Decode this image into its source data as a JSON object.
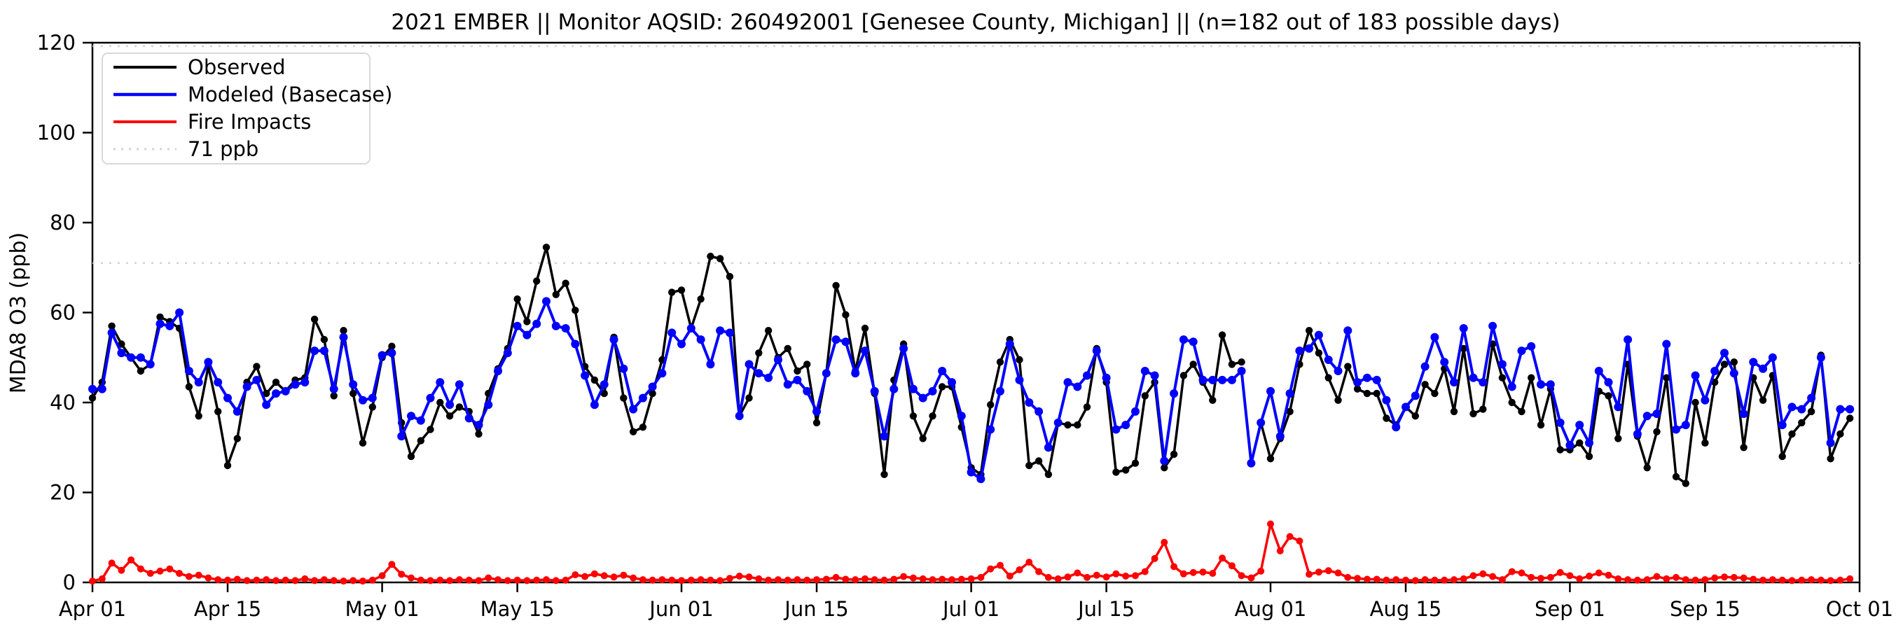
{
  "title": "2021 EMBER || Monitor AQSID: 260492001 [Genesee County, Michigan] || (n=182 out of 183 possible days)",
  "y_axis": {
    "label": "MDA8 O3 (ppb)",
    "ticks": [
      0,
      20,
      40,
      60,
      80,
      100,
      120
    ],
    "min": 0,
    "max": 120
  },
  "x_axis": {
    "ticks": [
      {
        "label": "Apr 01",
        "day": 0
      },
      {
        "label": "Apr 15",
        "day": 14
      },
      {
        "label": "May 01",
        "day": 30
      },
      {
        "label": "May 15",
        "day": 44
      },
      {
        "label": "Jun 01",
        "day": 61
      },
      {
        "label": "Jun 15",
        "day": 75
      },
      {
        "label": "Jul 01",
        "day": 91
      },
      {
        "label": "Jul 15",
        "day": 105
      },
      {
        "label": "Aug 01",
        "day": 122
      },
      {
        "label": "Aug 15",
        "day": 136
      },
      {
        "label": "Sep 01",
        "day": 153
      },
      {
        "label": "Sep 15",
        "day": 167
      },
      {
        "label": "Oct 01",
        "day": 183
      }
    ]
  },
  "legend": [
    {
      "label": "Observed",
      "color": "#000000",
      "style": "solid"
    },
    {
      "label": "Modeled (Basecase)",
      "color": "#0000ff",
      "style": "solid"
    },
    {
      "label": "Fire Impacts",
      "color": "#ff0000",
      "style": "solid"
    },
    {
      "label": "71 ppb",
      "color": "#d3d3d3",
      "style": "dotted"
    }
  ],
  "threshold_ppb": 71,
  "colors": {
    "observed": "#000000",
    "modeled": "#0000ff",
    "fire": "#ff0000",
    "threshold": "#d3d3d3",
    "spine": "#000000"
  },
  "chart_data": {
    "type": "line",
    "title": "2021 EMBER || Monitor AQSID: 260492001 [Genesee County, Michigan] || (n=182 out of 183 possible days)",
    "xlabel": "",
    "ylabel": "MDA8 O3 (ppb)",
    "ylim": [
      0,
      120
    ],
    "grid": false,
    "legend_position": "upper left",
    "start_date": "2021-04-01",
    "end_date": "2021-09-30",
    "n_days": 183,
    "missing_observed_day_index": 120,
    "reference_line": {
      "label": "71 ppb",
      "value": 71
    },
    "series": [
      {
        "name": "Observed",
        "color": "#000000",
        "values": [
          41,
          44.5,
          57,
          53,
          50,
          47,
          48.5,
          59,
          58,
          56.5,
          43.5,
          37,
          48,
          38,
          26,
          32,
          44.5,
          48,
          42,
          44.5,
          42.5,
          45,
          45.5,
          58.5,
          54,
          41.5,
          56,
          42,
          31,
          39,
          50,
          52.5,
          35.5,
          28,
          31.5,
          34,
          40,
          37,
          39,
          38,
          33,
          42,
          47.5,
          52,
          63,
          58,
          67,
          74.5,
          64,
          66.5,
          60.5,
          48,
          45,
          42,
          54.5,
          41,
          33.5,
          34.5,
          42,
          49.5,
          64.5,
          65,
          56.5,
          63,
          72.5,
          72,
          68,
          37,
          41,
          51,
          56,
          50,
          52,
          47,
          48.5,
          35.5,
          46.5,
          66,
          59.5,
          47,
          56.5,
          42,
          24,
          45,
          53,
          37,
          32,
          37,
          43.5,
          43.5,
          34.5,
          25.5,
          24,
          39.5,
          49,
          54,
          49.5,
          26,
          27,
          24,
          35.5,
          35,
          35,
          39,
          52,
          44.5,
          24.5,
          25,
          26.5,
          41.5,
          44.5,
          25.5,
          28.5,
          46,
          48.5,
          44.5,
          40.5,
          55,
          48.5,
          49,
          null,
          35.5,
          27.5,
          32,
          38,
          48.5,
          56,
          51,
          45.5,
          40.5,
          48,
          43,
          42,
          42,
          36.5,
          35,
          39,
          37,
          44,
          42,
          47.5,
          38,
          52,
          37.5,
          38.5,
          53,
          45.5,
          40,
          38,
          45.5,
          35,
          43,
          29.5,
          29.5,
          31,
          28,
          42.5,
          41.5,
          32,
          48.5,
          32.5,
          25.5,
          33.5,
          45.5,
          23.5,
          22,
          40,
          31,
          44.5,
          48.5,
          49,
          30,
          45.5,
          40.5,
          46,
          28,
          33,
          35.5,
          38,
          50.5,
          27.5,
          33,
          36.5
        ]
      },
      {
        "name": "Modeled (Basecase)",
        "color": "#0000ff",
        "values": [
          43,
          43,
          55.5,
          51,
          50,
          50,
          48.5,
          57.5,
          57,
          60,
          47,
          44.5,
          49,
          44.5,
          41,
          38,
          43.5,
          45,
          39.5,
          42,
          42.5,
          44,
          44.5,
          51.5,
          51.5,
          43,
          54.5,
          44,
          40.5,
          41,
          50.5,
          51,
          32.5,
          37,
          36,
          41,
          44.5,
          39.5,
          44,
          36.5,
          35,
          39.5,
          47,
          51,
          57,
          55,
          57.5,
          62.5,
          57,
          56.5,
          53,
          46,
          39.5,
          44,
          54,
          47.5,
          38.5,
          41,
          43.5,
          46.5,
          55.5,
          53,
          56.5,
          54,
          48.5,
          56,
          55.5,
          37,
          48.5,
          46.5,
          45.5,
          49.5,
          44,
          45,
          42.5,
          38,
          46.5,
          54,
          53.5,
          46.5,
          51.5,
          42.5,
          32.5,
          43,
          52,
          43,
          41,
          42.5,
          47,
          44.5,
          37,
          24.5,
          23,
          34,
          42.5,
          53,
          45,
          40,
          38,
          30,
          35.5,
          44.5,
          43.5,
          46,
          51.5,
          45.5,
          34,
          35,
          38,
          47,
          46,
          27,
          42,
          54,
          53.5,
          45,
          45,
          45,
          45,
          47,
          26.5,
          35.5,
          42.5,
          32.5,
          42,
          51.5,
          52,
          55,
          49.5,
          47,
          56,
          44.5,
          45.5,
          45,
          40.5,
          34.5,
          39,
          41.5,
          48,
          54.5,
          49,
          44.5,
          56.5,
          45.5,
          44.5,
          57,
          48.5,
          43.5,
          51.5,
          52.5,
          44,
          44,
          35.5,
          30.5,
          35,
          31,
          47,
          44.5,
          39,
          54,
          33,
          37,
          37.5,
          53,
          34,
          35,
          46,
          40.5,
          47,
          51,
          46.5,
          37.5,
          49,
          47.5,
          50,
          35,
          39,
          38.5,
          41,
          50,
          31,
          38.5,
          38.5
        ]
      },
      {
        "name": "Fire Impacts",
        "color": "#ff0000",
        "values": [
          0.3,
          0.8,
          4.3,
          2.7,
          5,
          3,
          2,
          2.5,
          3,
          2,
          1.3,
          1.6,
          1,
          0.6,
          0.5,
          0.7,
          0.4,
          0.5,
          0.6,
          0.4,
          0.5,
          0.4,
          0.8,
          0.4,
          0.6,
          0.4,
          0.3,
          0.4,
          0.3,
          0.5,
          1.5,
          4,
          1.8,
          1,
          0.5,
          0.4,
          0.5,
          0.4,
          0.6,
          0.5,
          0.4,
          1,
          0.6,
          0.4,
          0.5,
          0.4,
          0.5,
          0.6,
          0.4,
          0.5,
          1.7,
          1.3,
          1.9,
          1.5,
          1.2,
          1.6,
          1,
          0.6,
          0.5,
          0.6,
          0.5,
          0.4,
          0.5,
          0.6,
          0.5,
          0.4,
          0.9,
          1.4,
          1.2,
          0.8,
          0.5,
          0.6,
          0.5,
          0.6,
          0.5,
          0.6,
          0.7,
          1.1,
          0.7,
          0.6,
          0.8,
          0.6,
          0.5,
          0.7,
          1.3,
          1,
          0.8,
          0.6,
          0.7,
          0.6,
          0.7,
          0.8,
          1.1,
          3,
          3.8,
          1.4,
          2.8,
          4.5,
          2.4,
          1.1,
          0.8,
          1.2,
          2.1,
          1.1,
          1.6,
          1.2,
          1.9,
          1.4,
          1.5,
          2.4,
          5.3,
          8.9,
          3.5,
          1.9,
          2.2,
          2.3,
          2,
          5.4,
          3.7,
          1.5,
          1,
          2.5,
          13,
          7,
          10.2,
          9.2,
          1.8,
          2.3,
          2.6,
          2.1,
          1.1,
          0.9,
          0.7,
          0.7,
          0.5,
          0.6,
          0.5,
          0.4,
          0.6,
          0.5,
          0.5,
          0.6,
          0.8,
          1.5,
          1.9,
          1.3,
          0.6,
          2.4,
          2.1,
          1.1,
          0.9,
          1.1,
          2.2,
          1.5,
          0.8,
          1.4,
          2.1,
          1.6,
          0.8,
          0.6,
          0.5,
          0.6,
          1.3,
          0.8,
          1.1,
          0.6,
          0.5,
          0.6,
          1,
          1.2,
          1.1,
          1,
          0.7,
          0.5,
          0.6,
          0.5,
          0.4,
          0.5,
          0.6,
          0.5,
          0.4,
          0.5,
          0.8
        ]
      }
    ]
  }
}
